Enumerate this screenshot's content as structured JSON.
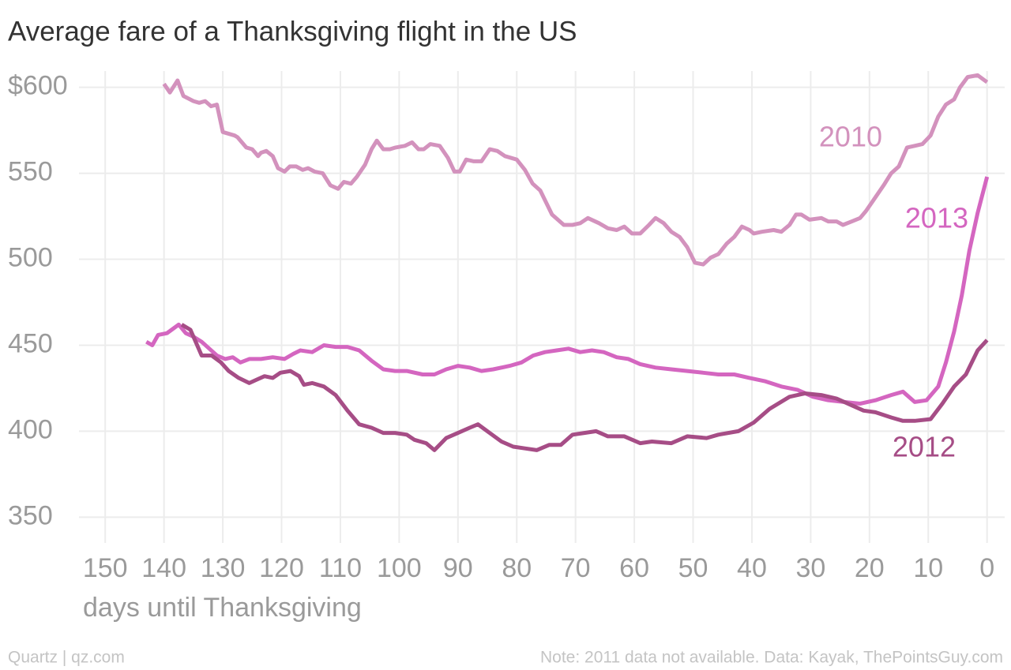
{
  "chart_data": {
    "type": "line",
    "title": "Average fare of a Thanksgiving flight in the US",
    "x_label": "days until Thanksgiving",
    "source": "Quartz | qz.com",
    "note": "Note: 2011 data not available. Data: Kayak, ThePointsGuy.com",
    "xlim": [
      155,
      -3
    ],
    "xticks": [
      150,
      140,
      130,
      120,
      110,
      100,
      90,
      80,
      70,
      60,
      50,
      40,
      30,
      20,
      10,
      0
    ],
    "ylim": [
      335,
      615
    ],
    "yticks": [
      350,
      400,
      450,
      500,
      550,
      {
        "value": 600,
        "label": "$600"
      }
    ],
    "grid": true,
    "series": [
      {
        "name": "2010",
        "color": "#d392bd",
        "x": [
          140,
          139,
          137.7,
          136.7,
          135,
          134,
          133,
          132,
          131,
          130,
          128,
          127.5,
          126,
          125,
          124,
          123.5,
          122.6,
          121.5,
          120.6,
          119.5,
          118.6,
          117.5,
          116.4,
          115.5,
          114.4,
          113,
          111.7,
          110.4,
          109.4,
          108.2,
          107.2,
          105.8,
          104.7,
          103.8,
          102.7,
          101.6,
          100.6,
          99,
          97.8,
          96.7,
          95.8,
          94.7,
          93.1,
          91.7,
          90.6,
          89.7,
          88.6,
          87.3,
          86,
          84.6,
          83.3,
          82,
          80,
          78.6,
          77.3,
          76,
          74,
          72,
          70.5,
          69.2,
          67.9,
          66,
          64.5,
          63,
          61.7,
          60.4,
          59,
          57.5,
          56.4,
          55,
          53.7,
          52.3,
          51,
          49.7,
          48.3,
          47,
          45.7,
          44.3,
          43,
          41.7,
          40.4,
          39.7,
          38.3,
          36.3,
          35,
          33.6,
          32.5,
          31.6,
          30.2,
          28.2,
          27,
          25.6,
          24.5,
          23,
          21.6,
          20.6,
          19,
          17.6,
          16.3,
          15,
          13.6,
          12.3,
          11,
          9.6,
          8.3,
          7,
          5.6,
          4.6,
          3.3,
          1.6,
          0
        ],
        "values": [
          602,
          597,
          604,
          595,
          592,
          591,
          592,
          589,
          590,
          574,
          572,
          571,
          565,
          564,
          560,
          562,
          563,
          560,
          553,
          551,
          554,
          554,
          552,
          553,
          551,
          550,
          543,
          541,
          545,
          544,
          548,
          555,
          564,
          569,
          564,
          564,
          565,
          566,
          568,
          564,
          564,
          567,
          566,
          559,
          551,
          551,
          558,
          557,
          557,
          564,
          563,
          560,
          558,
          552,
          544,
          540,
          526,
          520,
          520,
          521,
          524,
          521,
          518,
          517,
          519,
          515,
          515,
          520,
          524,
          521,
          516,
          513,
          507,
          498,
          497,
          501,
          503,
          509,
          513,
          519,
          517,
          515,
          516,
          517,
          516,
          520,
          526,
          526,
          523,
          524,
          522,
          522,
          520,
          522,
          524,
          528,
          536,
          543,
          550,
          554,
          565,
          566,
          567,
          572,
          583,
          590,
          593,
          600,
          606,
          607,
          603
        ]
      },
      {
        "name": "2013",
        "color": "#d466c0",
        "x": [
          143,
          142,
          141,
          139.5,
          137.5,
          136.3,
          135,
          133.6,
          132.3,
          131,
          129.6,
          128.3,
          127,
          125.5,
          123.5,
          121.5,
          119.5,
          118,
          116.8,
          114.8,
          112.8,
          110.8,
          108.8,
          106.8,
          104.7,
          102.7,
          100.7,
          98.7,
          96,
          94,
          92,
          90,
          88,
          86,
          84,
          81.2,
          79.2,
          77.2,
          75.2,
          73.2,
          71.2,
          69.2,
          67.2,
          65.2,
          63,
          61,
          59,
          56.4,
          53.7,
          51,
          48.3,
          45.7,
          43,
          40.4,
          37.7,
          35,
          32.2,
          29.6,
          27,
          24.3,
          21.6,
          19,
          16.3,
          14.3,
          12.3,
          10.3,
          8.3,
          7,
          5.6,
          4.3,
          3,
          1.6,
          0
        ],
        "values": [
          452,
          450,
          456,
          457,
          462,
          457,
          455,
          452,
          448,
          444,
          442,
          443,
          440,
          442,
          442,
          443,
          442,
          445,
          447,
          446,
          450,
          449,
          449,
          447,
          441,
          436,
          435,
          435,
          433,
          433,
          436,
          438,
          437,
          435,
          436,
          438,
          440,
          444,
          446,
          447,
          448,
          446,
          447,
          446,
          443,
          442,
          439,
          437,
          436,
          435,
          434,
          433,
          433,
          431,
          429,
          426,
          424,
          420,
          418,
          417,
          416,
          418,
          421,
          423,
          417,
          418,
          426,
          440,
          458,
          479,
          505,
          527,
          548
        ]
      },
      {
        "name": "2012",
        "color": "#a64d86",
        "x": [
          137,
          135.5,
          133.6,
          131.9,
          130.3,
          129,
          127.3,
          125.5,
          124.2,
          122.9,
          121.5,
          120.2,
          118.5,
          117,
          116.2,
          114.8,
          112.8,
          110.8,
          108.8,
          106.8,
          104.7,
          102.7,
          100.7,
          98.7,
          97.4,
          95.4,
          94,
          92,
          90,
          88,
          86.6,
          84.6,
          82.6,
          80.6,
          78.6,
          76.6,
          74.5,
          72.5,
          70.5,
          68.5,
          66.5,
          64.5,
          61.7,
          59,
          57,
          53.7,
          51,
          47.7,
          45.7,
          42.3,
          39.7,
          37,
          33.6,
          31,
          28.2,
          25.6,
          23,
          21,
          19,
          16.3,
          14.3,
          12.3,
          9.6,
          7.6,
          5.6,
          3.6,
          1.6,
          0
        ],
        "values": [
          462,
          459,
          444,
          444,
          440,
          435,
          431,
          428,
          430,
          432,
          431,
          434,
          435,
          432,
          427,
          428,
          426,
          421,
          412,
          404,
          402,
          399,
          399,
          398,
          395,
          393,
          389,
          396,
          399,
          402,
          404,
          399,
          394,
          391,
          390,
          389,
          392,
          392,
          398,
          399,
          400,
          397,
          397,
          393,
          394,
          393,
          397,
          396,
          398,
          400,
          405,
          413,
          420,
          422,
          421,
          419,
          415,
          412,
          411,
          408,
          406,
          406,
          407,
          416,
          426,
          433,
          447,
          453
        ]
      }
    ]
  }
}
